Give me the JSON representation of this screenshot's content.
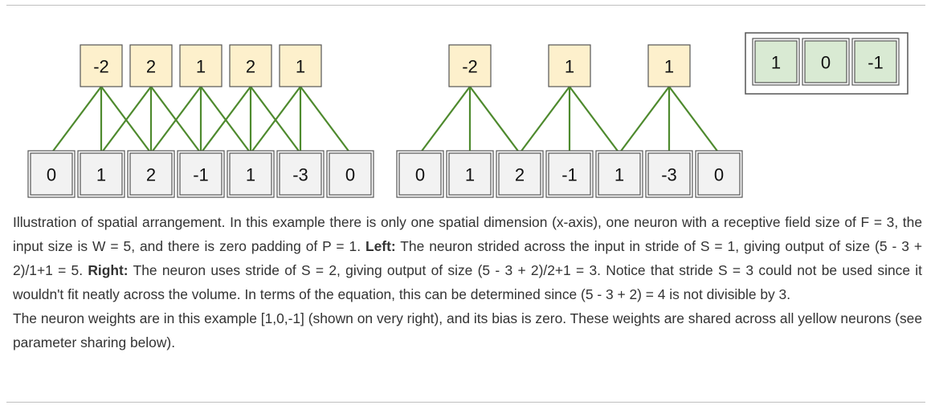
{
  "figure": {
    "left_diagram": {
      "outputs": [
        "-2",
        "2",
        "1",
        "2",
        "1"
      ],
      "inputs": [
        "0",
        "1",
        "2",
        "-1",
        "1",
        "-3",
        "0"
      ],
      "stride": 1
    },
    "right_diagram": {
      "outputs": [
        "-2",
        "1",
        "1"
      ],
      "inputs": [
        "0",
        "1",
        "2",
        "-1",
        "1",
        "-3",
        "0"
      ],
      "stride": 2
    },
    "weights": [
      "1",
      "0",
      "-1"
    ],
    "colors": {
      "output_fill": "#fdf0cc",
      "input_fill": "#f2f2f2",
      "weight_fill": "#d9ead3",
      "connection_line": "#4e8a2e",
      "border": "#555555"
    }
  },
  "caption": {
    "p1_intro": "Illustration of spatial arrangement. In this example there is only one spatial dimension (x-axis), one neuron with a receptive field size of F = 3, the input size is W = 5, and there is zero padding of P = 1. ",
    "p1_left_label": "Left:",
    "p1_left_text": " The neuron strided across the input in stride of S = 1, giving output of size (5 - 3 + 2)/1+1 = 5. ",
    "p1_right_label": "Right:",
    "p1_right_text": " The neuron uses stride of S = 2, giving output of size (5 - 3 + 2)/2+1 = 3. Notice that stride S = 3 could not be used since it wouldn't fit neatly across the volume. In terms of the equation, this can be determined since (5 - 3 + 2) = 4 is not divisible by 3.",
    "p2": "The neuron weights are in this example [1,0,-1] (shown on very right), and its bias is zero. These weights are shared across all yellow neurons (see parameter sharing below)."
  }
}
